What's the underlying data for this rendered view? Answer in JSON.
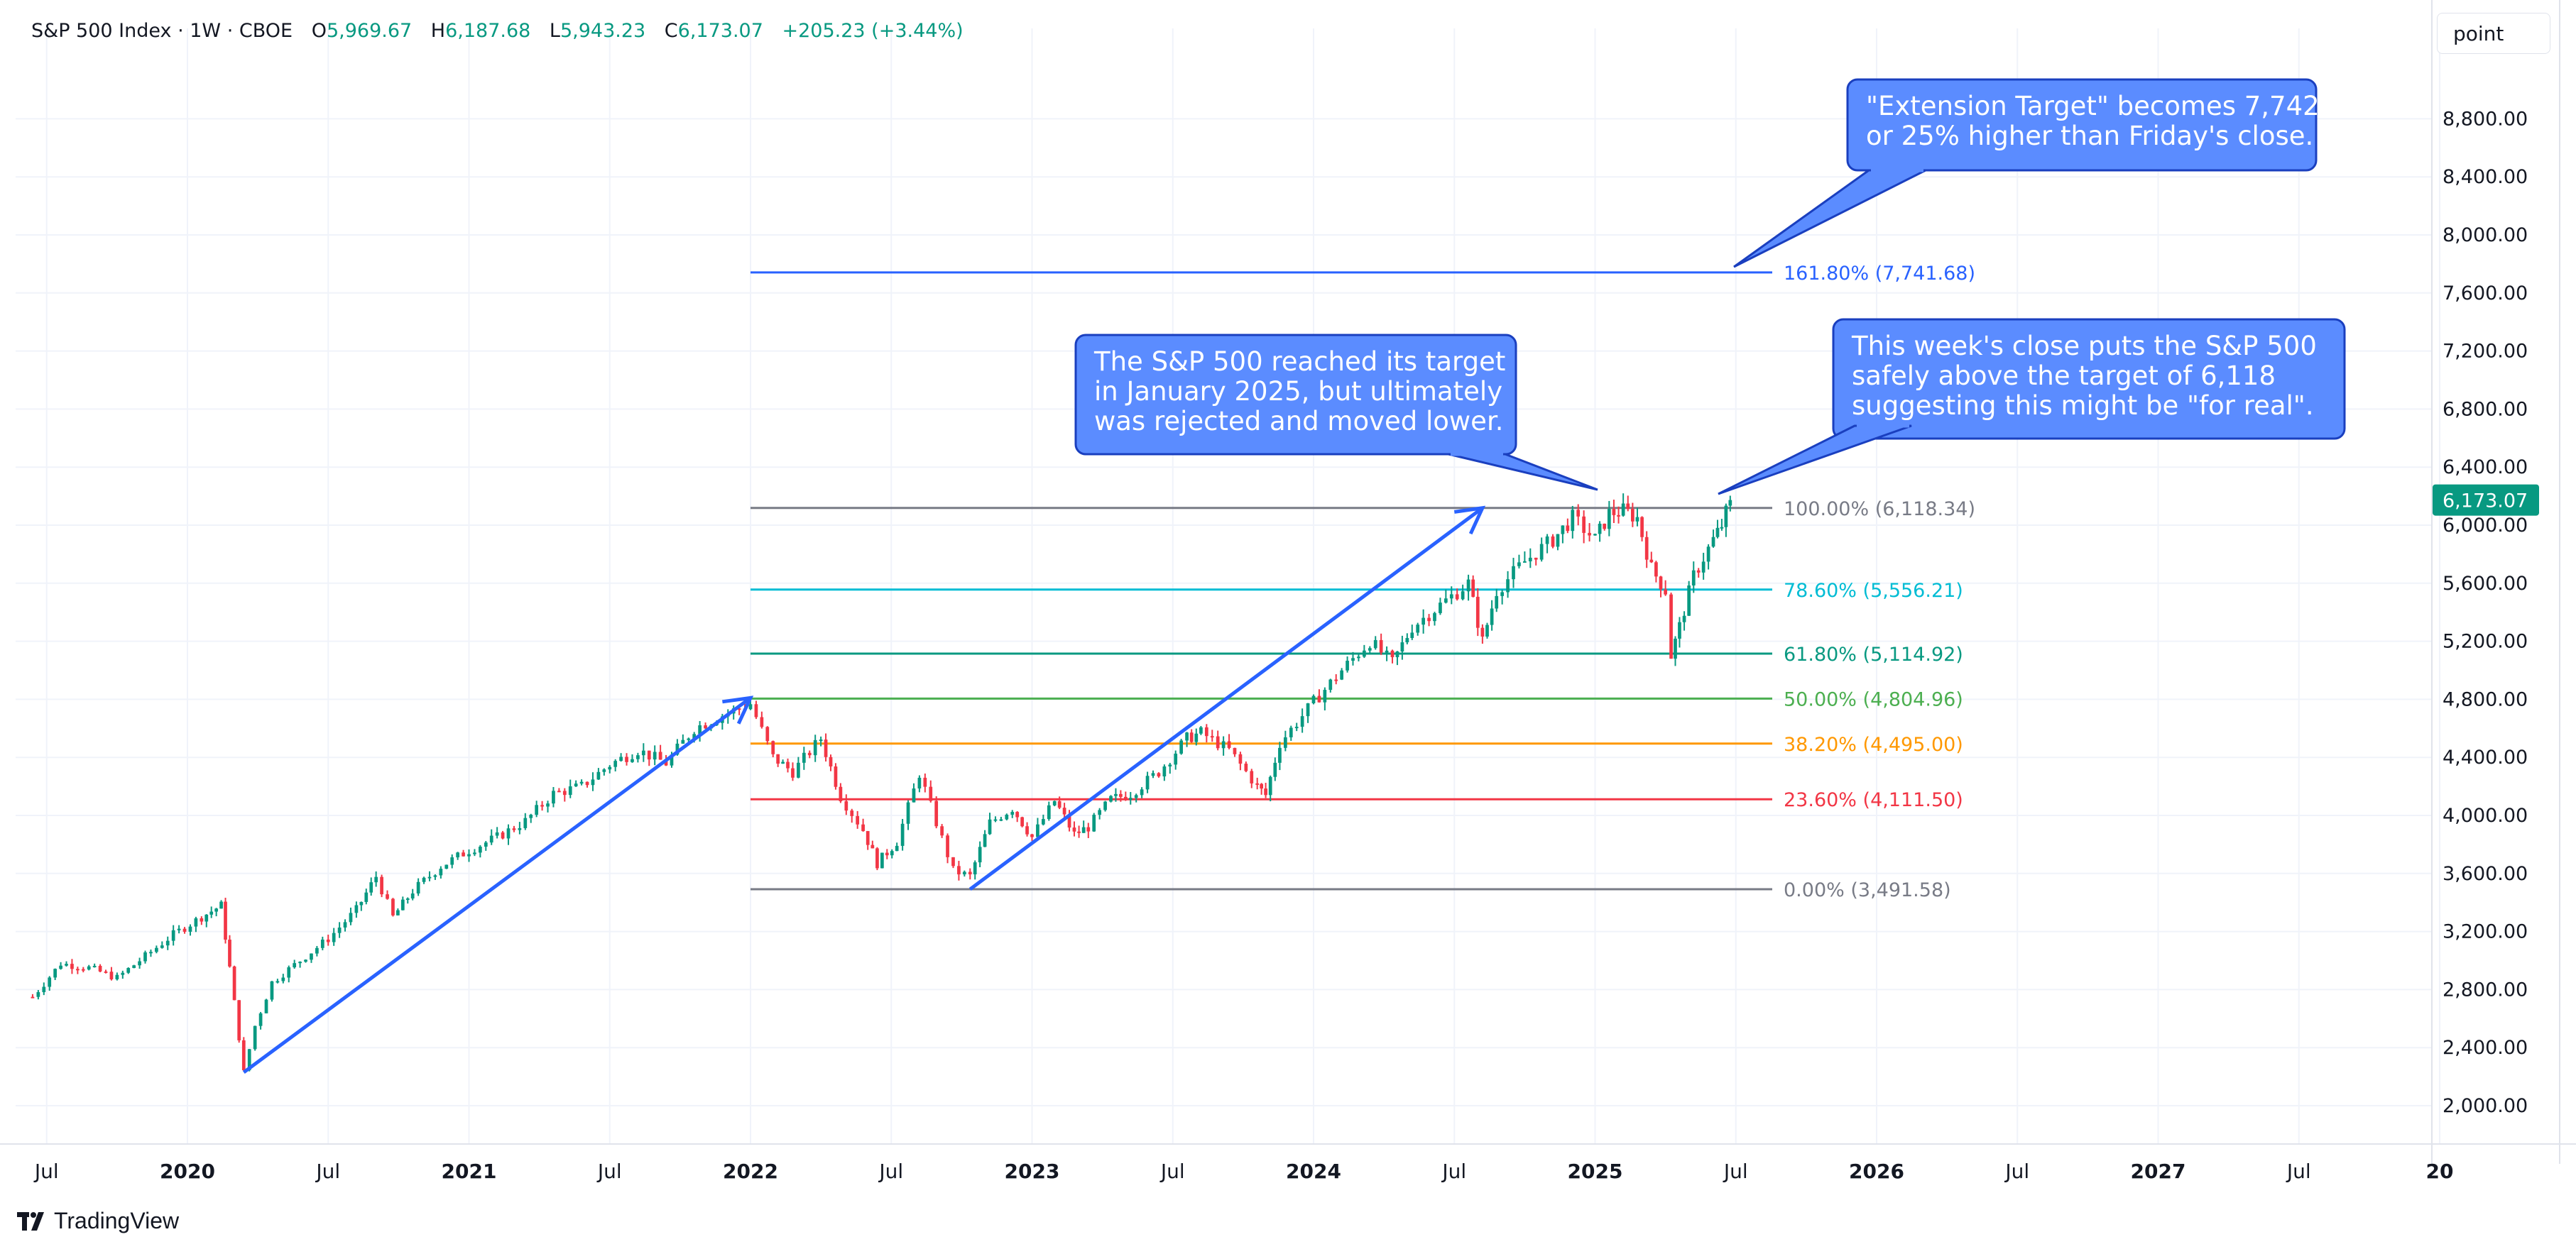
{
  "legend": {
    "symbol": "S&P 500 Index · 1W · CBOE",
    "open_label": "O",
    "open": "5,969.67",
    "high_label": "H",
    "high": "6,187.68",
    "low_label": "L",
    "low": "5,943.23",
    "close_label": "C",
    "close": "6,173.07",
    "change": "+205.23 (+3.44%)"
  },
  "scale_button": "point",
  "branding": "TradingView",
  "chart_data": {
    "type": "candlestick",
    "interval": "1W",
    "y_axis": {
      "ticks": [
        "2,000.00",
        "2,400.00",
        "2,800.00",
        "3,200.00",
        "3,600.00",
        "4,000.00",
        "4,400.00",
        "4,800.00",
        "5,200.00",
        "5,600.00",
        "6,000.00",
        "6,400.00",
        "6,800.00",
        "7,200.00",
        "7,600.00",
        "8,000.00",
        "8,400.00",
        "8,800.00"
      ],
      "range": [
        1700,
        9500
      ]
    },
    "x_axis": {
      "ticks": [
        {
          "label": "Jul",
          "t": 2019.5,
          "bold": false
        },
        {
          "label": "2020",
          "t": 2020.0,
          "bold": true
        },
        {
          "label": "Jul",
          "t": 2020.5,
          "bold": false
        },
        {
          "label": "2021",
          "t": 2021.0,
          "bold": true
        },
        {
          "label": "Jul",
          "t": 2021.5,
          "bold": false
        },
        {
          "label": "2022",
          "t": 2022.0,
          "bold": true
        },
        {
          "label": "Jul",
          "t": 2022.5,
          "bold": false
        },
        {
          "label": "2023",
          "t": 2023.0,
          "bold": true
        },
        {
          "label": "Jul",
          "t": 2023.5,
          "bold": false
        },
        {
          "label": "2024",
          "t": 2024.0,
          "bold": true
        },
        {
          "label": "Jul",
          "t": 2024.5,
          "bold": false
        },
        {
          "label": "2025",
          "t": 2025.0,
          "bold": true
        },
        {
          "label": "Jul",
          "t": 2025.5,
          "bold": false
        },
        {
          "label": "2026",
          "t": 2026.0,
          "bold": true
        },
        {
          "label": "Jul",
          "t": 2026.5,
          "bold": false
        },
        {
          "label": "2027",
          "t": 2027.0,
          "bold": true
        },
        {
          "label": "Jul",
          "t": 2027.5,
          "bold": false
        },
        {
          "label": "20",
          "t": 2028.0,
          "bold": true
        }
      ]
    },
    "price_path": [
      [
        2019.45,
        2750
      ],
      [
        2019.55,
        2980
      ],
      [
        2019.65,
        2950
      ],
      [
        2019.75,
        2880
      ],
      [
        2019.85,
        3030
      ],
      [
        2019.95,
        3180
      ],
      [
        2020.05,
        3300
      ],
      [
        2020.12,
        3380
      ],
      [
        2020.15,
        2950
      ],
      [
        2020.2,
        2230
      ],
      [
        2020.24,
        2550
      ],
      [
        2020.3,
        2850
      ],
      [
        2020.4,
        3000
      ],
      [
        2020.5,
        3150
      ],
      [
        2020.6,
        3350
      ],
      [
        2020.67,
        3580
      ],
      [
        2020.73,
        3300
      ],
      [
        2020.8,
        3480
      ],
      [
        2020.9,
        3650
      ],
      [
        2021.0,
        3760
      ],
      [
        2021.1,
        3850
      ],
      [
        2021.2,
        3960
      ],
      [
        2021.3,
        4150
      ],
      [
        2021.4,
        4200
      ],
      [
        2021.5,
        4350
      ],
      [
        2021.6,
        4450
      ],
      [
        2021.7,
        4360
      ],
      [
        2021.8,
        4600
      ],
      [
        2021.9,
        4690
      ],
      [
        2022.0,
        4770
      ],
      [
        2022.08,
        4400
      ],
      [
        2022.15,
        4300
      ],
      [
        2022.25,
        4530
      ],
      [
        2022.32,
        4130
      ],
      [
        2022.4,
        3900
      ],
      [
        2022.45,
        3670
      ],
      [
        2022.52,
        3820
      ],
      [
        2022.6,
        4290
      ],
      [
        2022.66,
        3950
      ],
      [
        2022.72,
        3620
      ],
      [
        2022.78,
        3580
      ],
      [
        2022.85,
        3950
      ],
      [
        2022.93,
        4050
      ],
      [
        2023.0,
        3850
      ],
      [
        2023.08,
        4100
      ],
      [
        2023.15,
        3870
      ],
      [
        2023.2,
        3920
      ],
      [
        2023.28,
        4110
      ],
      [
        2023.35,
        4150
      ],
      [
        2023.45,
        4300
      ],
      [
        2023.55,
        4530
      ],
      [
        2023.6,
        4570
      ],
      [
        2023.7,
        4450
      ],
      [
        2023.8,
        4200
      ],
      [
        2023.83,
        4140
      ],
      [
        2023.88,
        4500
      ],
      [
        2024.0,
        4780
      ],
      [
        2024.1,
        5000
      ],
      [
        2024.2,
        5200
      ],
      [
        2024.28,
        5050
      ],
      [
        2024.35,
        5300
      ],
      [
        2024.45,
        5450
      ],
      [
        2024.55,
        5600
      ],
      [
        2024.6,
        5200
      ],
      [
        2024.65,
        5550
      ],
      [
        2024.75,
        5750
      ],
      [
        2024.85,
        5900
      ],
      [
        2024.92,
        6050
      ],
      [
        2025.0,
        5900
      ],
      [
        2025.05,
        6080
      ],
      [
        2025.1,
        6100
      ],
      [
        2025.15,
        6050
      ],
      [
        2025.2,
        5700
      ],
      [
        2025.25,
        5550
      ],
      [
        2025.27,
        5100
      ],
      [
        2025.3,
        5300
      ],
      [
        2025.35,
        5650
      ],
      [
        2025.42,
        5900
      ],
      [
        2025.45,
        6000
      ],
      [
        2025.48,
        6173.07
      ]
    ],
    "fib_levels": [
      {
        "ratio": "161.80%",
        "value": 7741.68,
        "label": "161.80% (7,741.68)",
        "color": "#2962ff"
      },
      {
        "ratio": "100.00%",
        "value": 6118.34,
        "label": "100.00% (6,118.34)",
        "color": "#787b86"
      },
      {
        "ratio": "78.60%",
        "value": 5556.21,
        "label": "78.60% (5,556.21)",
        "color": "#00bcd4"
      },
      {
        "ratio": "61.80%",
        "value": 5114.92,
        "label": "61.80% (5,114.92)",
        "color": "#089981"
      },
      {
        "ratio": "50.00%",
        "value": 4804.96,
        "label": "50.00% (4,804.96)",
        "color": "#4caf50"
      },
      {
        "ratio": "38.20%",
        "value": 4495.0,
        "label": "38.20% (4,495.00)",
        "color": "#ff9800"
      },
      {
        "ratio": "23.60%",
        "value": 4111.5,
        "label": "23.60% (4,111.50)",
        "color": "#f23645"
      },
      {
        "ratio": "0.00%",
        "value": 3491.58,
        "label": "0.00% (3,491.58)",
        "color": "#787b86"
      }
    ],
    "fib_start_t": 2022.0,
    "trend_arrows": [
      {
        "from": [
          2020.2,
          2230
        ],
        "to": [
          2022.0,
          4810
        ]
      },
      {
        "from": [
          2022.78,
          3491.58
        ],
        "to": [
          2024.6,
          6118.34
        ]
      }
    ],
    "last_price": {
      "label": "6,173.07",
      "value": 6173.07,
      "color": "#089981"
    },
    "annotations": [
      {
        "id": "extension",
        "lines": [
          "\"Extension Target\" becomes 7,742",
          "or 25% higher than Friday's close."
        ]
      },
      {
        "id": "rejected",
        "lines": [
          "The S&P 500 reached its target",
          "in January 2025, but ultimately",
          "was rejected and moved lower."
        ]
      },
      {
        "id": "this-week",
        "lines": [
          "This week's close puts the S&P 500",
          "safely above the target of 6,118",
          "suggesting this might be \"for real\"."
        ]
      }
    ],
    "colors": {
      "up": "#089981",
      "down": "#f23645",
      "callout": "#5b8cff",
      "callout_border": "#1a3fbf",
      "arrow": "#2962ff"
    }
  }
}
